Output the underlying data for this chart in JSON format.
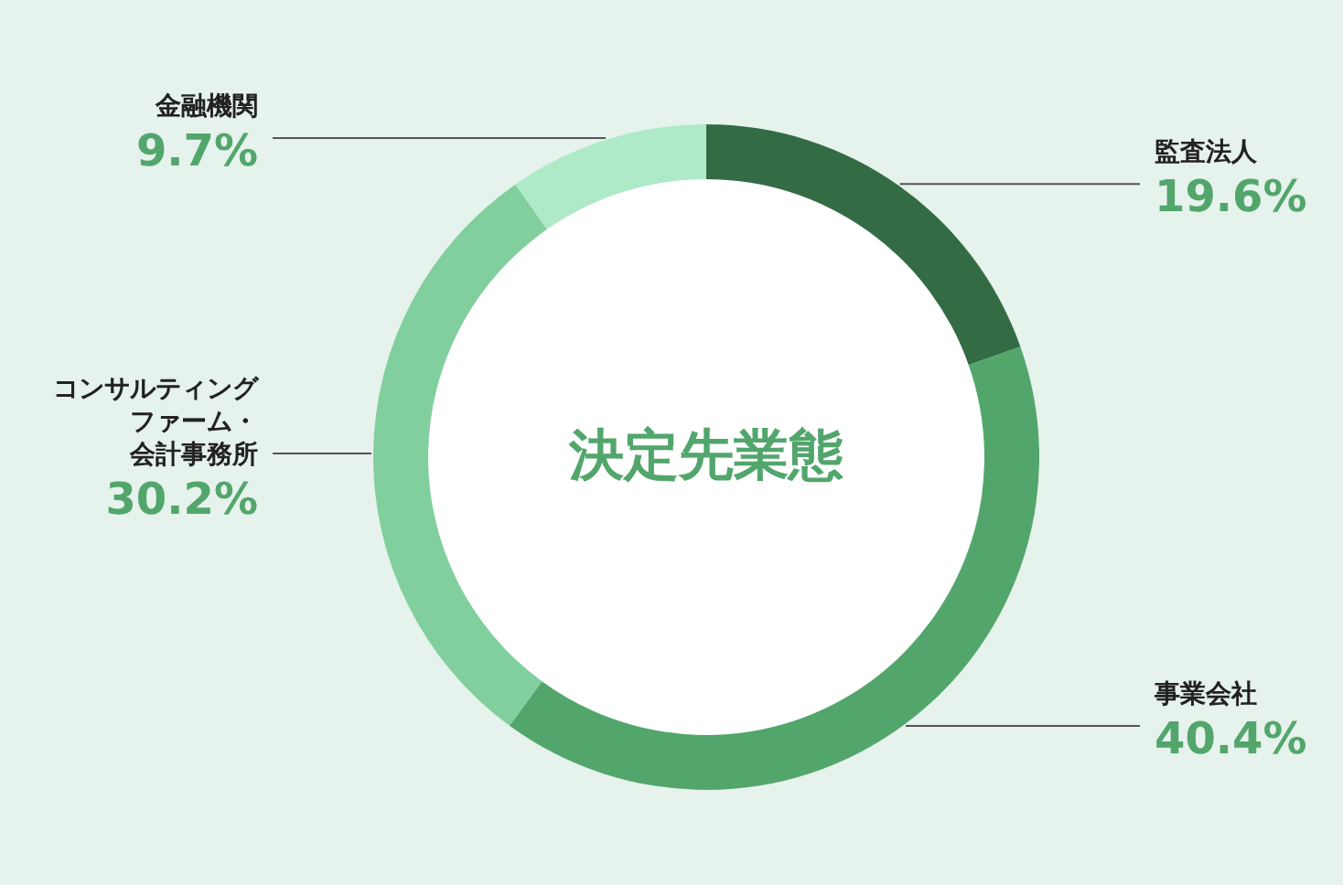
{
  "chart_data": {
    "type": "donut",
    "title": "決定先業態",
    "categories": [
      "監査法人",
      "事業会社",
      "コンサルティングファーム・会計事務所",
      "金融機関"
    ],
    "values": [
      19.6,
      40.4,
      30.2,
      9.7
    ],
    "colors": [
      "#336b45",
      "#53a66b",
      "#80cf9c",
      "#aeeac8"
    ],
    "value_labels": [
      "19.6%",
      "40.4%",
      "30.2%",
      "9.7%"
    ]
  }
}
